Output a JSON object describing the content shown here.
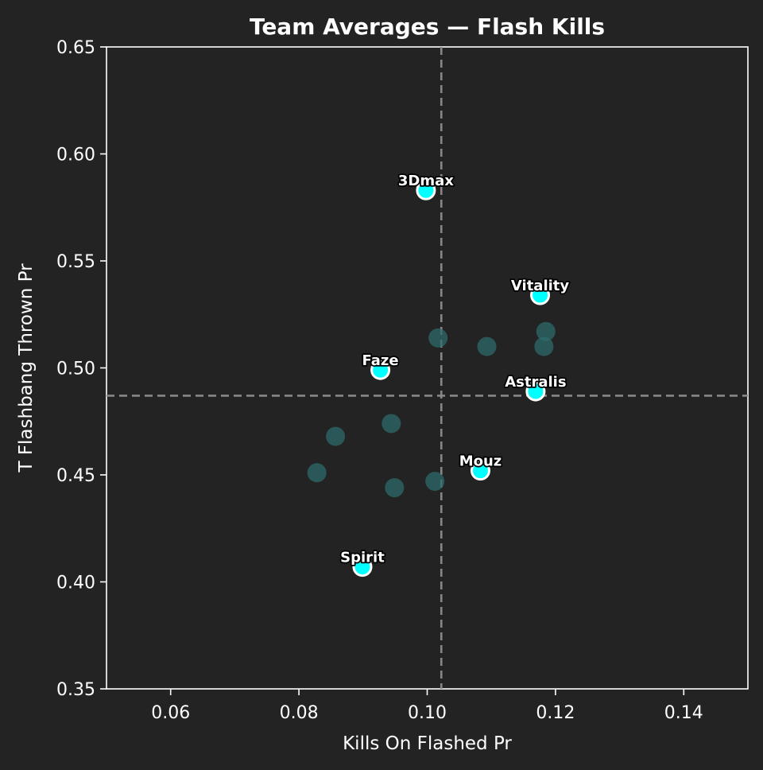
{
  "chart_data": {
    "type": "scatter",
    "title": "Team Averages — Flash Kills",
    "xlabel": "Kills On Flashed Pr",
    "ylabel": "T Flashbang Thrown Pr",
    "xlim": [
      0.05,
      0.15
    ],
    "ylim": [
      0.35,
      0.65
    ],
    "xticks": [
      0.06,
      0.08,
      0.1,
      0.12,
      0.14
    ],
    "xtick_labels": [
      "0.06",
      "0.08",
      "0.10",
      "0.12",
      "0.14"
    ],
    "yticks": [
      0.35,
      0.4,
      0.45,
      0.5,
      0.55,
      0.6,
      0.65
    ],
    "ytick_labels": [
      "0.35",
      "0.40",
      "0.45",
      "0.50",
      "0.55",
      "0.60",
      "0.65"
    ],
    "mean_x": 0.1022,
    "mean_y": 0.487,
    "grid": false,
    "colors": {
      "background": "#232323",
      "highlight": "#00ffff",
      "highlight_edge": "#ffffff",
      "other": "#2e6b6b",
      "mean_line": "#888888",
      "axes": "#ffffff"
    },
    "highlighted": [
      {
        "name": "3Dmax",
        "x": 0.0998,
        "y": 0.583
      },
      {
        "name": "Vitality",
        "x": 0.1176,
        "y": 0.534
      },
      {
        "name": "Faze",
        "x": 0.0927,
        "y": 0.499
      },
      {
        "name": "Astralis",
        "x": 0.1169,
        "y": 0.489
      },
      {
        "name": "Mouz",
        "x": 0.1083,
        "y": 0.452
      },
      {
        "name": "Spirit",
        "x": 0.0899,
        "y": 0.407
      }
    ],
    "others": [
      {
        "x": 0.1017,
        "y": 0.514
      },
      {
        "x": 0.1093,
        "y": 0.51
      },
      {
        "x": 0.1185,
        "y": 0.517
      },
      {
        "x": 0.1182,
        "y": 0.51
      },
      {
        "x": 0.0857,
        "y": 0.468
      },
      {
        "x": 0.0944,
        "y": 0.474
      },
      {
        "x": 0.0828,
        "y": 0.451
      },
      {
        "x": 0.0949,
        "y": 0.444
      },
      {
        "x": 0.1012,
        "y": 0.447
      }
    ]
  }
}
